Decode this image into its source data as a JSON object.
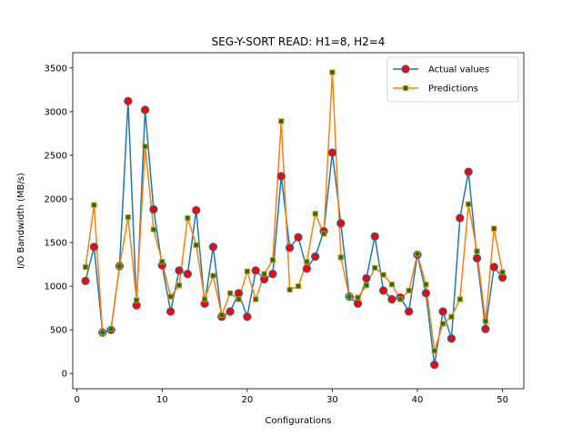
{
  "chart_data": {
    "type": "line",
    "title": "SEG-Y-SORT READ: H1=8, H2=4",
    "xlabel": "Configurations",
    "ylabel": "I/O Bandwidth (MB/s)",
    "xlim": [
      -0.5,
      52.5
    ],
    "ylim": [
      -175,
      3675
    ],
    "xticks": [
      0,
      10,
      20,
      30,
      40,
      50
    ],
    "yticks": [
      0,
      500,
      1000,
      1500,
      2000,
      2500,
      3000,
      3500
    ],
    "legend_position": "upper right",
    "x": [
      1,
      2,
      3,
      4,
      5,
      6,
      7,
      8,
      9,
      10,
      11,
      12,
      13,
      14,
      15,
      16,
      17,
      18,
      19,
      20,
      21,
      22,
      23,
      24,
      25,
      26,
      27,
      28,
      29,
      30,
      31,
      32,
      33,
      34,
      35,
      36,
      37,
      38,
      39,
      40,
      41,
      42,
      43,
      44,
      45,
      46,
      47,
      48,
      49,
      50
    ],
    "series": [
      {
        "name": "Actual values",
        "color": "#1f77b4",
        "marker": "circle",
        "marker_face": "#ff0000",
        "values": [
          1060,
          1450,
          470,
          500,
          1230,
          3120,
          780,
          3020,
          1880,
          1240,
          710,
          1180,
          1140,
          1870,
          800,
          1450,
          650,
          710,
          920,
          650,
          1180,
          1080,
          1140,
          2260,
          1440,
          1560,
          1200,
          1340,
          1630,
          2530,
          1720,
          880,
          800,
          1090,
          1570,
          950,
          850,
          870,
          710,
          1360,
          920,
          100,
          710,
          400,
          1780,
          2310,
          1320,
          510,
          1220,
          1100
        ]
      },
      {
        "name": "Predictions",
        "color": "#ff7f0e",
        "marker": "square",
        "marker_face": "#008000",
        "values": [
          1220,
          1930,
          470,
          510,
          1230,
          1790,
          840,
          2600,
          1650,
          1280,
          880,
          1010,
          1780,
          1470,
          850,
          1120,
          670,
          920,
          850,
          1170,
          850,
          1140,
          1300,
          2890,
          960,
          1000,
          1280,
          1830,
          1600,
          3450,
          1330,
          880,
          870,
          1010,
          1210,
          1130,
          1020,
          850,
          950,
          1370,
          1020,
          260,
          570,
          650,
          850,
          1940,
          1400,
          600,
          1660,
          1160
        ]
      }
    ]
  }
}
